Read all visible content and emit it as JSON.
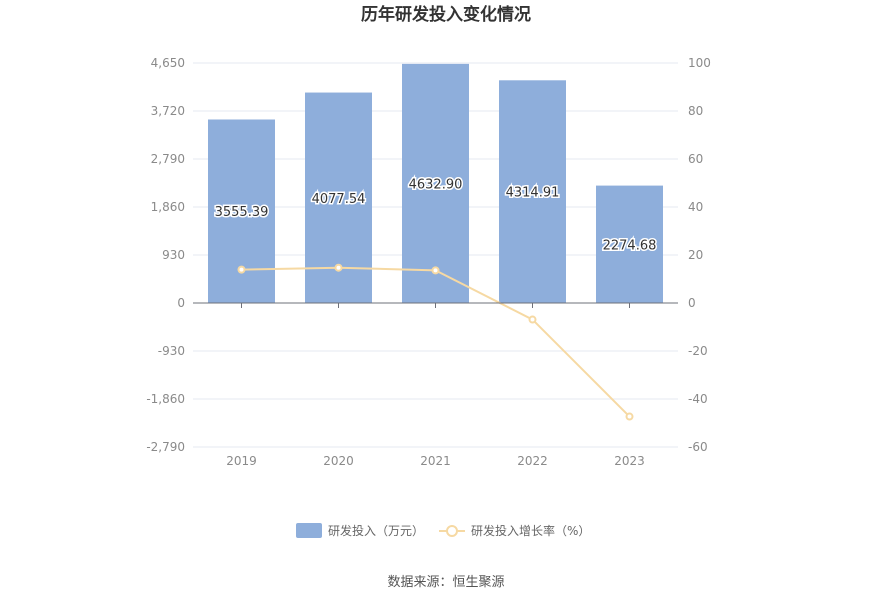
{
  "chart_data": {
    "type": "bar",
    "title": "历年研发投入变化情况",
    "categories": [
      "2019",
      "2020",
      "2021",
      "2022",
      "2023"
    ],
    "series": [
      {
        "name": "研发投入（万元）",
        "type": "bar",
        "axis": "left",
        "color": "#8eaedb",
        "values": [
          3555.39,
          4077.54,
          4632.9,
          4314.91,
          2274.68
        ],
        "labels": [
          "3555.39",
          "4077.54",
          "4632.90",
          "4314.91",
          "2274.68"
        ]
      },
      {
        "name": "研发投入增长率（%）",
        "type": "line",
        "axis": "right",
        "color": "#f6d9a3",
        "values": [
          13.9,
          14.7,
          13.6,
          -6.9,
          -47.3
        ]
      }
    ],
    "y_left": {
      "min": -2790,
      "max": 4650,
      "ticks": [
        "4,650",
        "3,720",
        "2,790",
        "1,860",
        "930",
        "0",
        "-930",
        "-1,860",
        "-2,790"
      ]
    },
    "y_right": {
      "min": -60,
      "max": 100,
      "ticks": [
        "100",
        "80",
        "60",
        "40",
        "20",
        "0",
        "-20",
        "-40",
        "-60"
      ]
    },
    "grid": true,
    "legend_position": "bottom"
  },
  "footer": {
    "source": "数据来源：恒生聚源"
  }
}
